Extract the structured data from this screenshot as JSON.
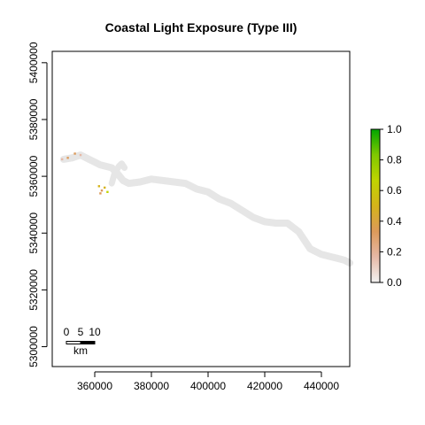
{
  "title": "Coastal Light Exposure (Type III)",
  "chart_data": {
    "type": "heatmap",
    "title": "Coastal Light Exposure (Type III)",
    "xlabel": "",
    "ylabel": "",
    "xlim": [
      345000,
      450000
    ],
    "ylim": [
      5293000,
      5404000
    ],
    "x_ticks": [
      360000,
      380000,
      400000,
      420000,
      440000
    ],
    "x_tick_labels": [
      "360000",
      "380000",
      "400000",
      "420000",
      "440000"
    ],
    "y_ticks": [
      5300000,
      5320000,
      5340000,
      5360000,
      5380000,
      5400000
    ],
    "y_tick_labels": [
      "5300000",
      "5320000",
      "5340000",
      "5360000",
      "5380000",
      "5400000"
    ],
    "legend": {
      "placement": "right",
      "min": 0.0,
      "max": 1.0,
      "ticks": [
        0.0,
        0.2,
        0.4,
        0.6,
        0.8,
        1.0
      ],
      "tick_labels": [
        "0.0",
        "0.2",
        "0.4",
        "0.6",
        "0.8",
        "1.0"
      ],
      "colors": [
        "#f2f2f2",
        "#e6b8a6",
        "#dc9a5a",
        "#d6b41a",
        "#c0d400",
        "#7fc800",
        "#00a600"
      ]
    },
    "scalebar": {
      "labels": [
        "0",
        "5",
        "10"
      ],
      "unit": "km",
      "length_km": 10
    },
    "features": {
      "coastline_band_x": [
        349000,
        352000,
        355000,
        358000,
        360000,
        362000,
        364000,
        366000,
        368000,
        370000,
        372000,
        376000,
        380000,
        384000,
        388000,
        392000,
        396000,
        400000,
        404000,
        408000,
        412000,
        416000,
        420000,
        424000,
        428000,
        432000,
        436000,
        440000,
        444000,
        448000,
        450000
      ],
      "coastline_band_y": [
        5366000,
        5366500,
        5367500,
        5366000,
        5365000,
        5364000,
        5363500,
        5363000,
        5361000,
        5358500,
        5357500,
        5358000,
        5359000,
        5358500,
        5358000,
        5357500,
        5355500,
        5354500,
        5352000,
        5350500,
        5348000,
        5345500,
        5344000,
        5343500,
        5343500,
        5340500,
        5334500,
        5332500,
        5331500,
        5330500,
        5329500
      ],
      "inlet_x": [
        366000,
        367000,
        368500,
        369500,
        370500
      ],
      "inlet_y": [
        5357500,
        5361000,
        5363500,
        5364500,
        5363000
      ],
      "exposure_points": [
        {
          "x": 348500,
          "y": 5366000,
          "value": 0.15
        },
        {
          "x": 350500,
          "y": 5366500,
          "value": 0.25
        },
        {
          "x": 353000,
          "y": 5368000,
          "value": 0.3
        },
        {
          "x": 355000,
          "y": 5367500,
          "value": 0.2
        },
        {
          "x": 361500,
          "y": 5356500,
          "value": 0.45
        },
        {
          "x": 362500,
          "y": 5355000,
          "value": 0.35
        },
        {
          "x": 363500,
          "y": 5356000,
          "value": 0.55
        },
        {
          "x": 364500,
          "y": 5354500,
          "value": 0.6
        },
        {
          "x": 362000,
          "y": 5354000,
          "value": 0.4
        }
      ]
    }
  }
}
